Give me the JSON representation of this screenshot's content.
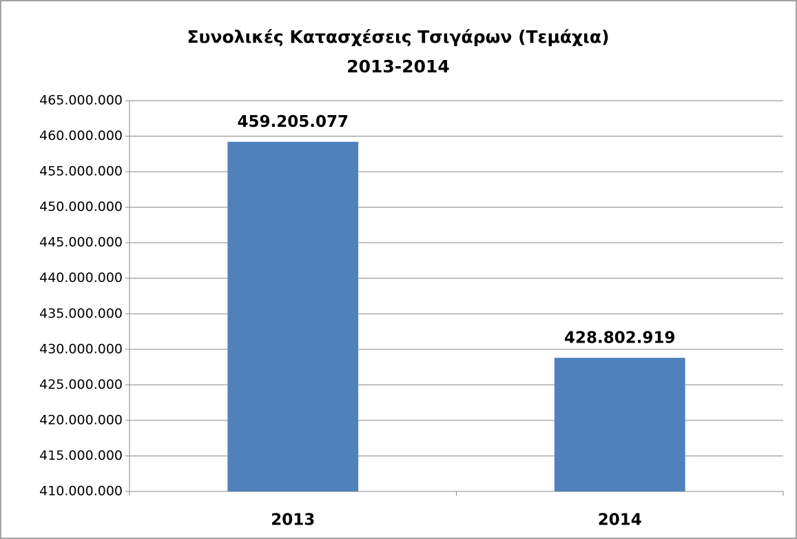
{
  "chart_data": {
    "type": "bar",
    "title": "Συνολικές Κατασχέσεις Τσιγάρων (Τεμάχια)",
    "subtitle": "2013-2014",
    "categories": [
      "2013",
      "2014"
    ],
    "values": [
      459205077,
      428802919
    ],
    "value_labels": [
      "459.205.077",
      "428.802.919"
    ],
    "color": "#4f81bd",
    "ylim": [
      410000000,
      465000000
    ],
    "yticks": [
      {
        "value": 410000000,
        "label": "410.000.000"
      },
      {
        "value": 415000000,
        "label": "415.000.000"
      },
      {
        "value": 420000000,
        "label": "420.000.000"
      },
      {
        "value": 425000000,
        "label": "425.000.000"
      },
      {
        "value": 430000000,
        "label": "430.000.000"
      },
      {
        "value": 435000000,
        "label": "435.000.000"
      },
      {
        "value": 440000000,
        "label": "440.000.000"
      },
      {
        "value": 445000000,
        "label": "445.000.000"
      },
      {
        "value": 450000000,
        "label": "450.000.000"
      },
      {
        "value": 455000000,
        "label": "455.000.000"
      },
      {
        "value": 460000000,
        "label": "460.000.000"
      },
      {
        "value": 465000000,
        "label": "465.000.000"
      }
    ],
    "grid": true
  }
}
